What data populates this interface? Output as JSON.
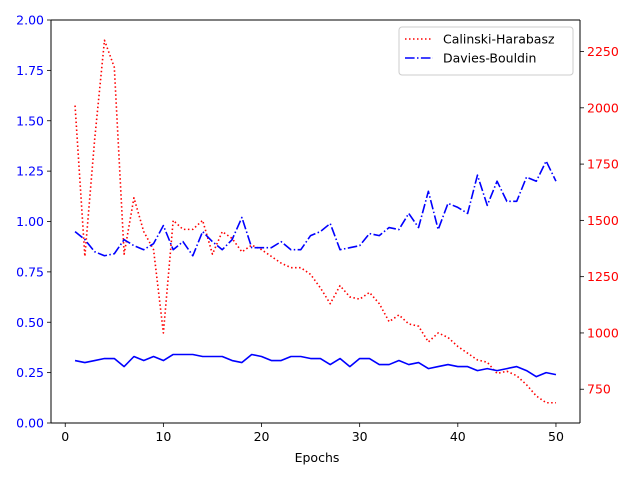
{
  "chart_data": {
    "type": "line",
    "x": [
      1,
      2,
      3,
      4,
      5,
      6,
      7,
      8,
      9,
      10,
      11,
      12,
      13,
      14,
      15,
      16,
      17,
      18,
      19,
      20,
      21,
      22,
      23,
      24,
      25,
      26,
      27,
      28,
      29,
      30,
      31,
      32,
      33,
      34,
      35,
      36,
      37,
      38,
      39,
      40,
      41,
      42,
      43,
      44,
      45,
      46,
      47,
      48,
      49,
      50
    ],
    "xlabel": "Epochs",
    "xlim": [
      -1.45,
      52.45
    ],
    "xticks": [
      0,
      10,
      20,
      30,
      40,
      50
    ],
    "y_left": {
      "lim": [
        0.0,
        2.0
      ],
      "ticks": [
        0.0,
        0.25,
        0.5,
        0.75,
        1.0,
        1.25,
        1.5,
        1.75,
        2.0
      ],
      "tick_labels": [
        "0.00",
        "0.25",
        "0.50",
        "0.75",
        "1.00",
        "1.25",
        "1.50",
        "1.75",
        "2.00"
      ],
      "color": "#0000ff"
    },
    "y_right": {
      "lim": [
        600,
        2390
      ],
      "ticks": [
        750,
        1000,
        1250,
        1500,
        1750,
        2000,
        2250
      ],
      "tick_labels": [
        "750",
        "1000",
        "1250",
        "1500",
        "1750",
        "2000",
        "2250"
      ],
      "color": "#ff0000"
    },
    "grid": false,
    "legend_position": "top-right",
    "series": [
      {
        "name": "Calinski-Harabasz",
        "axis": "right",
        "color": "#ff0000",
        "style": "dotted",
        "values": [
          2010,
          1340,
          1860,
          2300,
          2180,
          1350,
          1600,
          1450,
          1370,
          1000,
          1500,
          1460,
          1460,
          1500,
          1350,
          1450,
          1420,
          1360,
          1390,
          1370,
          1340,
          1310,
          1290,
          1290,
          1260,
          1200,
          1130,
          1210,
          1160,
          1150,
          1180,
          1130,
          1050,
          1080,
          1040,
          1030,
          960,
          1000,
          980,
          940,
          910,
          880,
          870,
          820,
          830,
          810,
          770,
          720,
          690,
          690
        ]
      },
      {
        "name": "Davies-Bouldin",
        "axis": "left",
        "color": "#0000ff",
        "style": "dashdot",
        "values": [
          0.95,
          0.91,
          0.85,
          0.83,
          0.84,
          0.91,
          0.88,
          0.86,
          0.89,
          0.98,
          0.86,
          0.9,
          0.83,
          0.95,
          0.9,
          0.86,
          0.91,
          1.02,
          0.87,
          0.87,
          0.87,
          0.9,
          0.86,
          0.86,
          0.93,
          0.95,
          0.99,
          0.86,
          0.87,
          0.88,
          0.94,
          0.93,
          0.97,
          0.96,
          1.04,
          0.97,
          1.15,
          0.96,
          1.09,
          1.07,
          1.04,
          1.23,
          1.08,
          1.2,
          1.1,
          1.1,
          1.22,
          1.2,
          1.3,
          1.2
        ]
      },
      {
        "name": "",
        "axis": "left",
        "color": "#0000ff",
        "style": "solid",
        "values": [
          0.31,
          0.3,
          0.31,
          0.32,
          0.32,
          0.28,
          0.33,
          0.31,
          0.33,
          0.31,
          0.34,
          0.34,
          0.34,
          0.33,
          0.33,
          0.33,
          0.31,
          0.3,
          0.34,
          0.33,
          0.31,
          0.31,
          0.33,
          0.33,
          0.32,
          0.32,
          0.29,
          0.32,
          0.28,
          0.32,
          0.32,
          0.29,
          0.29,
          0.31,
          0.29,
          0.3,
          0.27,
          0.28,
          0.29,
          0.28,
          0.28,
          0.26,
          0.27,
          0.26,
          0.27,
          0.28,
          0.26,
          0.23,
          0.25,
          0.24
        ]
      }
    ]
  }
}
